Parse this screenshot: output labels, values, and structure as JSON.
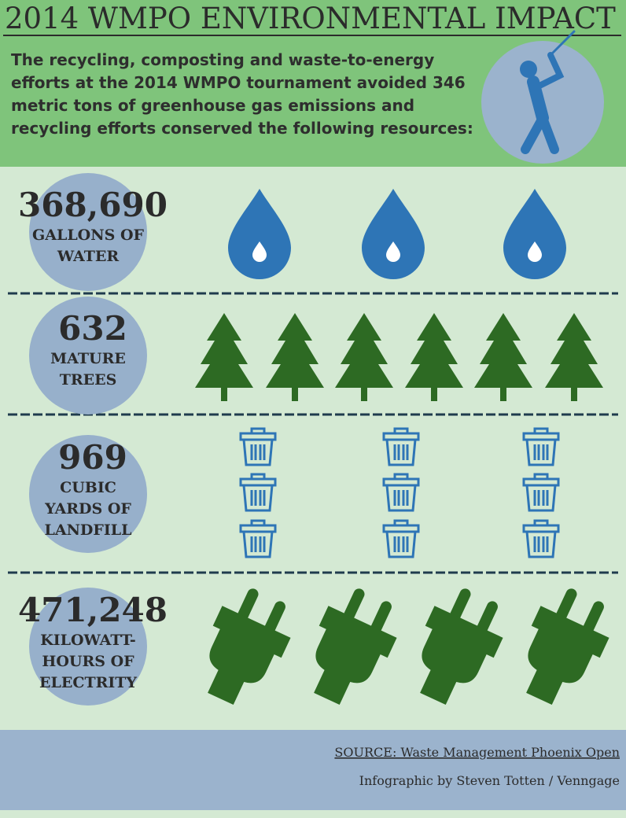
{
  "header": {
    "title": "2014 WMPO ENVIRONMENTAL IMPACT",
    "intro_lines": [
      "The recycling, composting and waste-to-energy",
      "efforts at the 2014 WMPO tournament avoided 346",
      "metric tons of greenhouse gas emissions and",
      "recycling efforts conserved the following resources:"
    ]
  },
  "rows": [
    {
      "number": "368,690",
      "label_lines": [
        "GALLONS OF",
        "WATER"
      ]
    },
    {
      "number": "632",
      "label_lines": [
        "MATURE",
        "TREES"
      ]
    },
    {
      "number": "969",
      "label_lines": [
        "CUBIC",
        "YARDS OF",
        "LANDFILL"
      ]
    },
    {
      "number": "471,248",
      "label_lines": [
        "KILOWATT-",
        "HOURS OF",
        "ELECTRITY"
      ]
    }
  ],
  "footer": {
    "source": "SOURCE: Waste Management Phoenix Open",
    "credit": "Infographic by Steven Totten / Venngage"
  }
}
